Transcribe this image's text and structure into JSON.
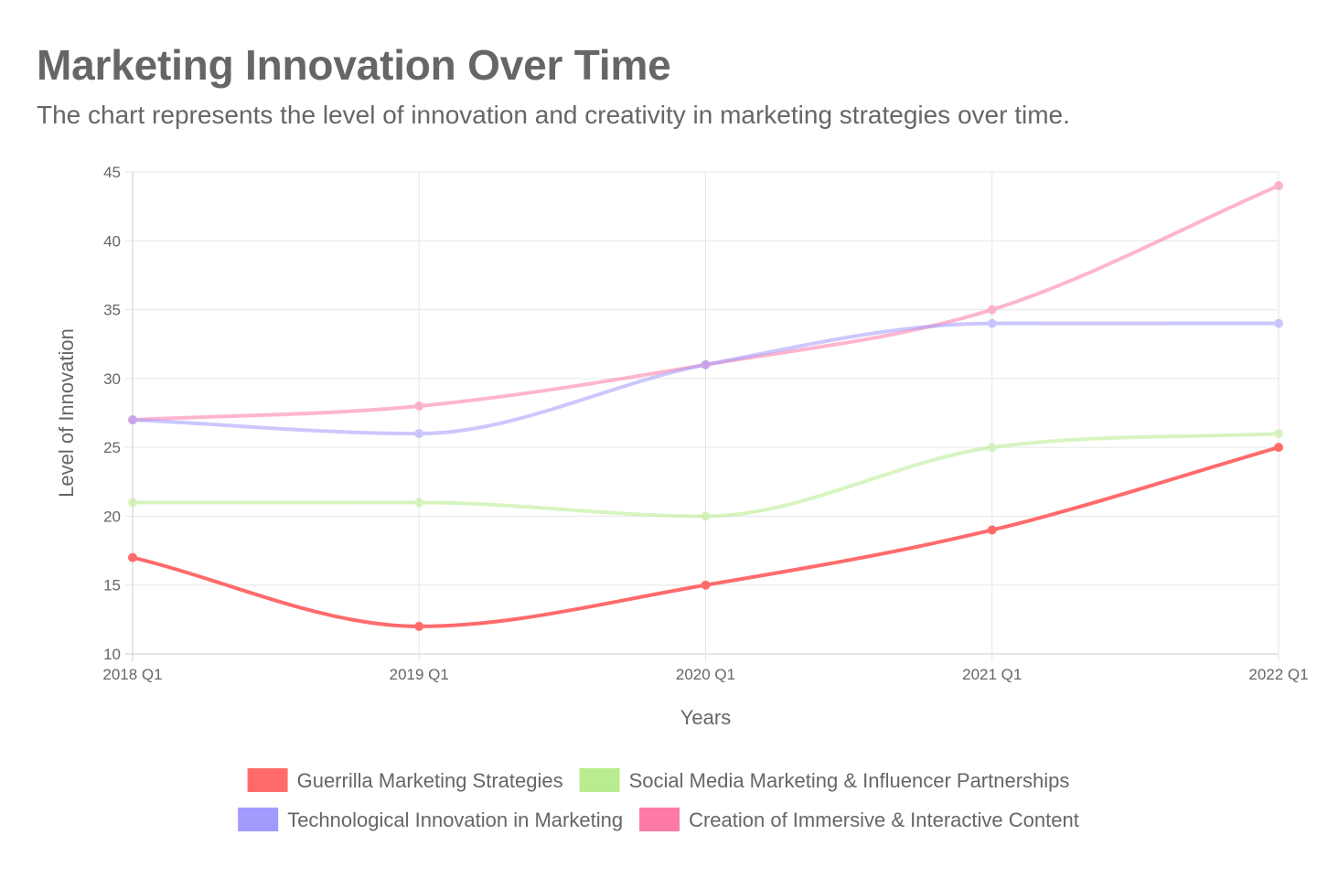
{
  "header": {
    "title": "Marketing Innovation Over Time",
    "subtitle": "The chart represents the level of innovation and creativity in marketing strategies over time."
  },
  "chart_data": {
    "type": "line",
    "title": "Marketing Innovation Over Time",
    "subtitle": "The chart represents the level of innovation and creativity in marketing strategies over time.",
    "xlabel": "Years",
    "ylabel": "Level of Innovation",
    "categories": [
      "2018 Q1",
      "2019 Q1",
      "2020 Q1",
      "2021 Q1",
      "2022 Q1"
    ],
    "ylim": [
      10,
      45
    ],
    "yticks": [
      10,
      15,
      20,
      25,
      30,
      35,
      40,
      45
    ],
    "grid": true,
    "legend_position": "bottom",
    "series": [
      {
        "name": "Guerrilla Marketing Strategies",
        "values": [
          17,
          12,
          15,
          19,
          25
        ],
        "color": "#ff6b6b",
        "opacity": 1.0
      },
      {
        "name": "Social Media Marketing & Influencer Partnerships",
        "values": [
          21,
          21,
          20,
          25,
          26
        ],
        "color": "#b8ec8e",
        "opacity": 0.55
      },
      {
        "name": "Technological Innovation in Marketing",
        "values": [
          27,
          26,
          31,
          34,
          34
        ],
        "color": "#a29bfe",
        "opacity": 0.55
      },
      {
        "name": "Creation of Immersive & Interactive Content",
        "values": [
          27,
          28,
          31,
          35,
          44
        ],
        "color": "#fd79a8",
        "opacity": 0.55
      }
    ]
  }
}
